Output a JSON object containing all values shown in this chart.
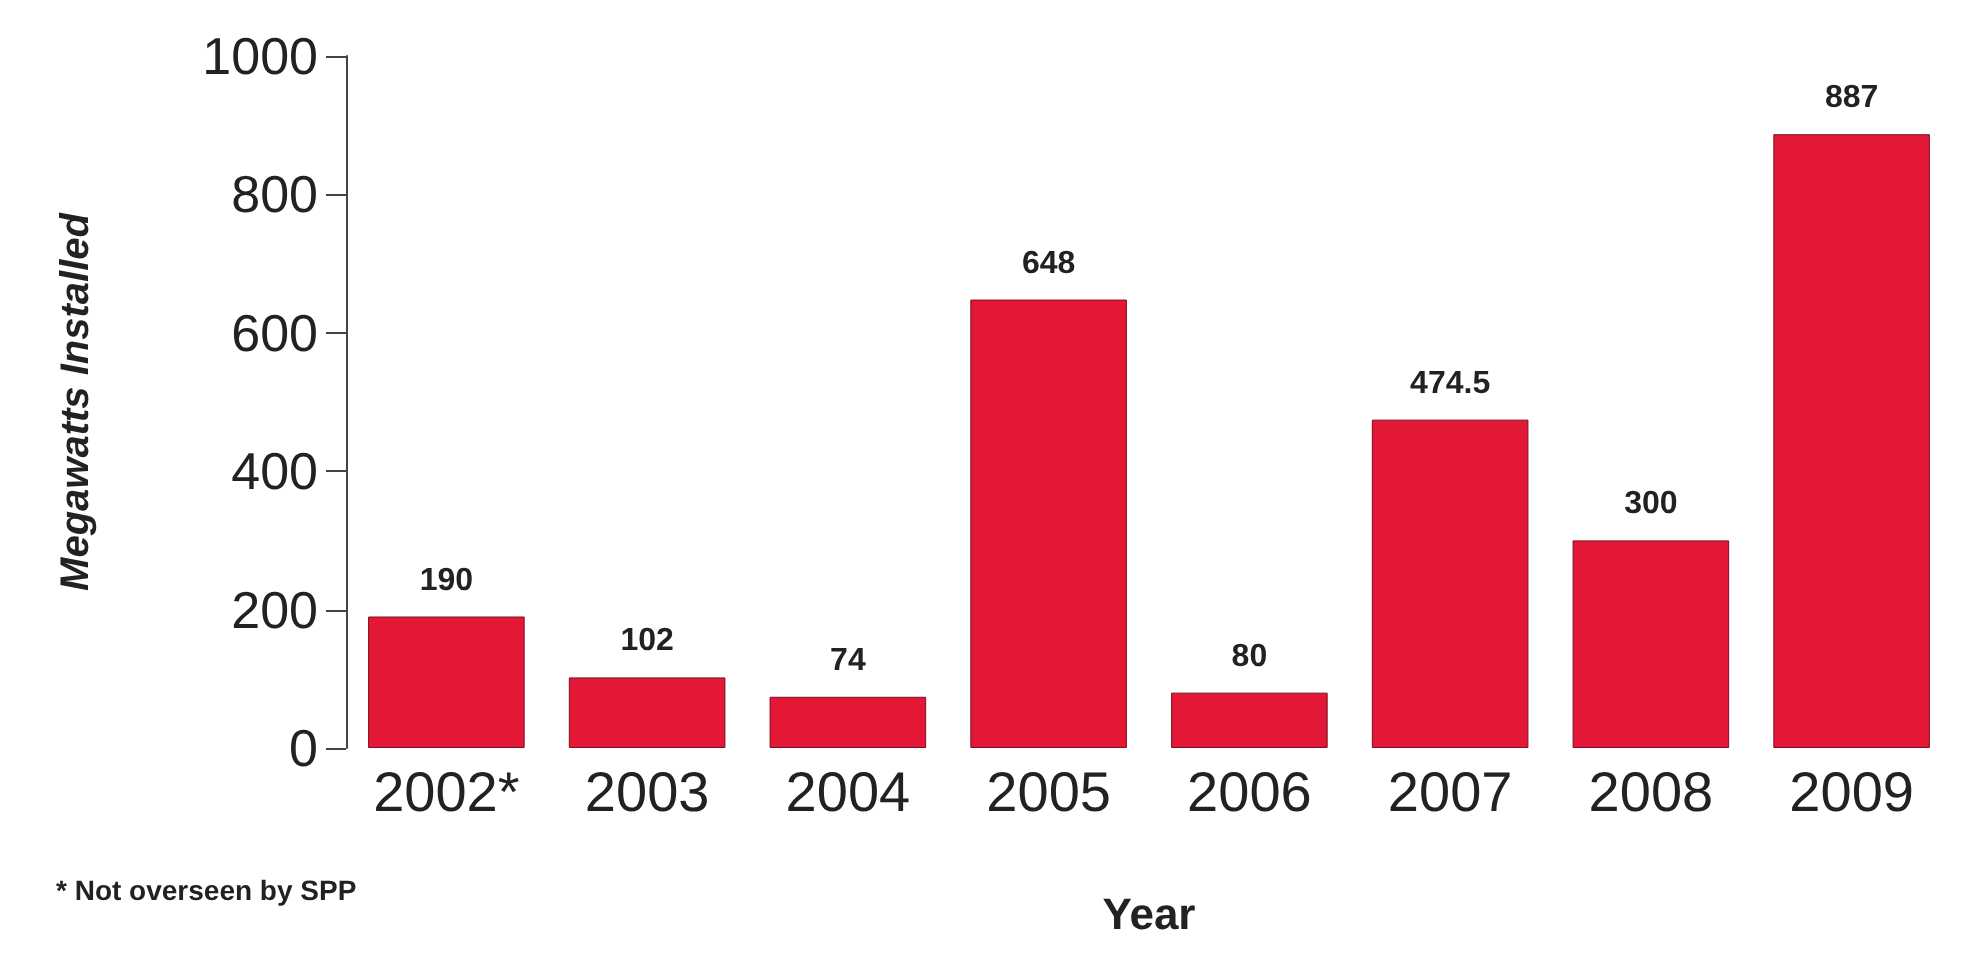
{
  "chart_data": {
    "type": "bar",
    "xlabel": "Year",
    "ylabel": "Megawatts Installed",
    "categories": [
      "2002*",
      "2003",
      "2004",
      "2005",
      "2006",
      "2007",
      "2008",
      "2009"
    ],
    "values": [
      190,
      102,
      74,
      648,
      80,
      474.5,
      300,
      887
    ],
    "color": "#e31837",
    "ylim": [
      0,
      1000
    ],
    "yticks": [
      0,
      200,
      400,
      600,
      800,
      1000
    ],
    "grid": false,
    "data_labels": true,
    "annotations": [
      "* Not overseen by SPP"
    ]
  }
}
